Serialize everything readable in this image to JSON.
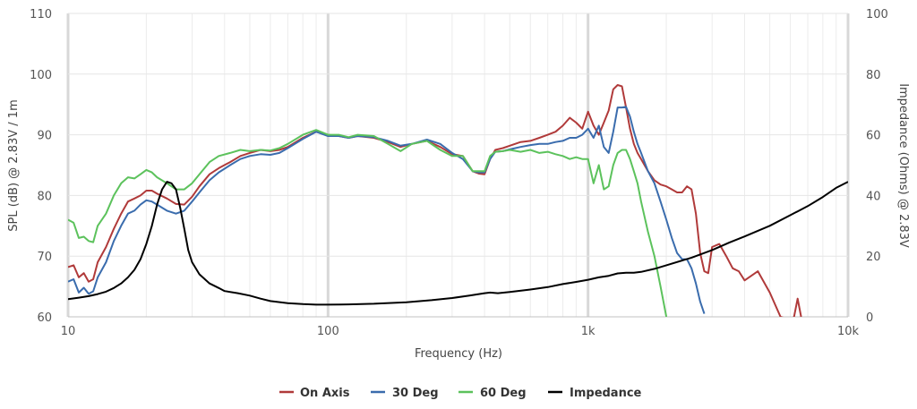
{
  "chart_data": {
    "type": "line",
    "xlabel": "Frequency (Hz)",
    "ylabel": "SPL (dB) @ 2.83V / 1m",
    "y2label": "Impedance (Ohms) @ 2.83V",
    "x_scale": "log",
    "xlim": [
      10,
      10000
    ],
    "ylim": [
      60,
      110
    ],
    "y2lim": [
      0,
      100
    ],
    "grid": true,
    "legend_position": "bottom",
    "x_ticks": [
      {
        "value": 10,
        "label": "10"
      },
      {
        "value": 100,
        "label": "100"
      },
      {
        "value": 1000,
        "label": "1k"
      },
      {
        "value": 10000,
        "label": "10k"
      }
    ],
    "y_ticks": [
      60,
      70,
      80,
      90,
      100,
      110
    ],
    "y2_ticks": [
      0,
      20,
      40,
      60,
      80,
      100
    ],
    "series": [
      {
        "name": "On Axis",
        "color": "#b03a3a",
        "axis": "left",
        "x": [
          10,
          10.5,
          11,
          11.5,
          12,
          12.5,
          13,
          14,
          15,
          16,
          17,
          18,
          19,
          20,
          21,
          22,
          24,
          26,
          28,
          30,
          32,
          35,
          38,
          42,
          46,
          50,
          55,
          60,
          65,
          70,
          80,
          90,
          100,
          110,
          120,
          130,
          150,
          170,
          190,
          210,
          240,
          270,
          300,
          330,
          360,
          380,
          400,
          420,
          440,
          470,
          500,
          550,
          600,
          650,
          700,
          750,
          800,
          850,
          900,
          950,
          1000,
          1050,
          1100,
          1150,
          1200,
          1250,
          1300,
          1350,
          1400,
          1450,
          1500,
          1550,
          1600,
          1700,
          1800,
          1900,
          2000,
          2100,
          2200,
          2300,
          2400,
          2500,
          2600,
          2700,
          2800,
          2900,
          3000,
          3200,
          3400,
          3600,
          3800,
          4000,
          4500,
          5000,
          5500,
          6000,
          6200,
          6400,
          6600
        ],
        "values": [
          68.2,
          68.5,
          66.5,
          67.2,
          65.8,
          66.2,
          69,
          71.5,
          74.5,
          77,
          79,
          79.5,
          80,
          80.8,
          80.8,
          80.3,
          79.5,
          78.6,
          78.5,
          79.8,
          81.5,
          83.5,
          84.5,
          85.5,
          86.5,
          87,
          87.5,
          87.3,
          87.5,
          88,
          89.5,
          90.5,
          90,
          89.8,
          89.5,
          89.8,
          89.5,
          88.8,
          88,
          88.5,
          89,
          88,
          86.8,
          86.5,
          84,
          83.6,
          83.5,
          86,
          87.5,
          87.8,
          88.2,
          88.8,
          89,
          89.5,
          90,
          90.5,
          91.5,
          92.8,
          92,
          91,
          93.8,
          91.5,
          90,
          92,
          94,
          97.5,
          98.2,
          98,
          94.5,
          91,
          88.5,
          87,
          86,
          84,
          82.5,
          81.8,
          81.5,
          81,
          80.5,
          80.5,
          81.5,
          81,
          77,
          70.5,
          67.5,
          67.2,
          71.5,
          72,
          70,
          68,
          67.5,
          66,
          67.5,
          64,
          60,
          59.5,
          60,
          63,
          60
        ]
      },
      {
        "name": "30 Deg",
        "color": "#3a6cad",
        "axis": "left",
        "x": [
          10,
          10.5,
          11,
          11.5,
          12,
          12.5,
          13,
          14,
          15,
          16,
          17,
          18,
          19,
          20,
          21,
          22,
          24,
          26,
          28,
          30,
          32,
          35,
          38,
          42,
          46,
          50,
          55,
          60,
          65,
          70,
          80,
          90,
          100,
          110,
          120,
          130,
          150,
          170,
          190,
          210,
          240,
          270,
          300,
          330,
          360,
          380,
          400,
          420,
          440,
          470,
          500,
          550,
          600,
          650,
          700,
          750,
          800,
          850,
          900,
          950,
          1000,
          1050,
          1100,
          1150,
          1200,
          1250,
          1300,
          1350,
          1400,
          1450,
          1500,
          1550,
          1600,
          1700,
          1800,
          1900,
          2000,
          2100,
          2200,
          2300,
          2400,
          2500,
          2600,
          2700,
          2800
        ],
        "values": [
          65.8,
          66.2,
          64,
          64.8,
          63.8,
          64.2,
          66.5,
          69,
          72.5,
          75,
          77,
          77.5,
          78.5,
          79.2,
          79,
          78.5,
          77.5,
          77,
          77.5,
          79,
          80.5,
          82.5,
          83.8,
          85,
          86,
          86.5,
          86.8,
          86.7,
          87,
          87.8,
          89.3,
          90.5,
          89.8,
          89.8,
          89.5,
          89.8,
          89.6,
          89,
          88.2,
          88.5,
          89.2,
          88.5,
          87,
          86,
          84,
          83.8,
          83.8,
          86,
          87.2,
          87.3,
          87.6,
          88,
          88.3,
          88.5,
          88.5,
          88.8,
          89,
          89.5,
          89.5,
          90,
          91,
          89.5,
          91.5,
          88,
          87,
          90.5,
          94.5,
          94.5,
          94.6,
          93,
          90.5,
          88.5,
          87,
          84,
          82,
          79,
          76,
          73,
          70.5,
          69.5,
          69.5,
          68,
          65.5,
          62.5,
          60.5
        ]
      },
      {
        "name": "60 Deg",
        "color": "#5cc25c",
        "axis": "left",
        "x": [
          10,
          10.5,
          11,
          11.5,
          12,
          12.5,
          13,
          14,
          15,
          16,
          17,
          18,
          19,
          20,
          21,
          22,
          24,
          26,
          28,
          30,
          32,
          35,
          38,
          42,
          46,
          50,
          55,
          60,
          65,
          70,
          80,
          90,
          100,
          110,
          120,
          130,
          150,
          170,
          190,
          210,
          240,
          270,
          300,
          330,
          360,
          380,
          400,
          420,
          440,
          470,
          500,
          550,
          600,
          650,
          700,
          750,
          800,
          850,
          900,
          950,
          1000,
          1050,
          1100,
          1150,
          1200,
          1250,
          1300,
          1350,
          1400,
          1450,
          1500,
          1550,
          1600,
          1700,
          1800,
          1900,
          2000
        ],
        "values": [
          76,
          75.5,
          73,
          73.2,
          72.5,
          72.3,
          75,
          77,
          80,
          82,
          83,
          82.8,
          83.5,
          84.2,
          83.8,
          83,
          82,
          81,
          81,
          82,
          83.5,
          85.5,
          86.5,
          87,
          87.5,
          87.3,
          87.5,
          87.4,
          87.8,
          88.5,
          90,
          90.8,
          90,
          90,
          89.6,
          90,
          89.8,
          88.5,
          87.3,
          88.5,
          89,
          87.5,
          86.5,
          86.5,
          84,
          84,
          84,
          86.5,
          87.2,
          87.3,
          87.5,
          87.2,
          87.5,
          87,
          87.2,
          86.8,
          86.5,
          86,
          86.3,
          86,
          86,
          82,
          85,
          81,
          81.5,
          85,
          87,
          87.5,
          87.5,
          86,
          84,
          82,
          79,
          74,
          70,
          65,
          60
        ]
      },
      {
        "name": "Impedance",
        "color": "#000000",
        "axis": "right",
        "x": [
          10,
          11,
          12,
          13,
          14,
          15,
          16,
          17,
          18,
          19,
          20,
          21,
          22,
          23,
          24,
          25,
          26,
          27,
          28,
          29,
          30,
          32,
          35,
          38,
          40,
          45,
          50,
          55,
          60,
          70,
          80,
          90,
          100,
          120,
          150,
          200,
          250,
          300,
          350,
          400,
          420,
          450,
          500,
          600,
          700,
          800,
          900,
          1000,
          1100,
          1200,
          1300,
          1400,
          1500,
          1600,
          1800,
          2000,
          2500,
          3000,
          3500,
          4000,
          5000,
          6000,
          7000,
          8000,
          9000,
          10000
        ],
        "values": [
          5.8,
          6.3,
          6.8,
          7.5,
          8.3,
          9.5,
          11,
          13,
          15.5,
          19,
          24,
          30,
          37,
          42,
          44.5,
          44,
          42,
          36,
          29,
          22,
          18,
          14,
          11,
          9.5,
          8.5,
          7.8,
          7,
          6,
          5.2,
          4.5,
          4.2,
          4,
          4,
          4.1,
          4.3,
          4.8,
          5.5,
          6.2,
          7,
          7.8,
          8,
          7.8,
          8.2,
          9,
          9.8,
          10.8,
          11.5,
          12.2,
          13,
          13.5,
          14.3,
          14.5,
          14.5,
          14.8,
          15.8,
          17,
          19.5,
          22,
          24.5,
          26.5,
          30,
          33.5,
          36.5,
          39.5,
          42.5,
          44.5
        ]
      }
    ]
  }
}
